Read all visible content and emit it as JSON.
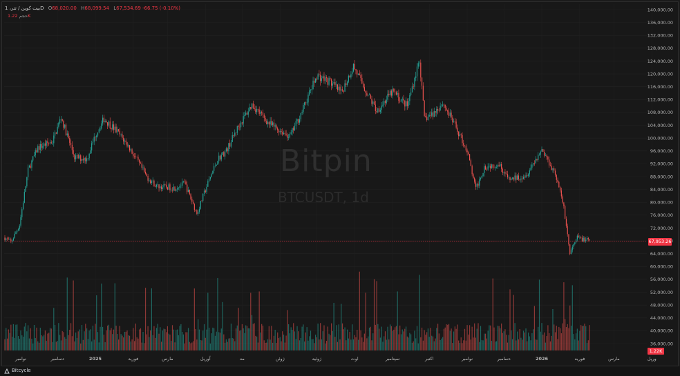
{
  "legend": {
    "symbol": "بیت کوین / تتر، 1D",
    "open_label": "O",
    "open": "68,020.00",
    "high_label": "H",
    "high": "68,099.54",
    "low_label": "L",
    "low": "67,534.69",
    "change": "-66.75 (-0.10%)",
    "volume_label": "حجم",
    "volume": "1.22K"
  },
  "watermark": {
    "brand": "Bitpin",
    "pair": "BTCUSDT, 1d"
  },
  "price_tag": "67,953.26",
  "volume_tag": "1.22K",
  "footer": {
    "brand": "Bitcycle"
  },
  "colors": {
    "up": "#26a69a",
    "down": "#ef5350",
    "price_line": "#f23645",
    "background": "#181818"
  },
  "chart_data": {
    "type": "candlestick",
    "symbol": "BTCUSDT",
    "interval": "1d",
    "ylim": [
      34000,
      141000
    ],
    "y_ticks": [
      "140,000.00",
      "136,000.00",
      "132,000.00",
      "128,000.00",
      "124,000.00",
      "120,000.00",
      "116,000.00",
      "112,000.00",
      "108,000.00",
      "104,000.00",
      "100,000.00",
      "96,000.00",
      "92,000.00",
      "88,000.00",
      "84,000.00",
      "80,000.00",
      "76,000.00",
      "72,000.00",
      "68,000.00",
      "64,000.00",
      "60,000.00",
      "56,000.00",
      "52,000.00",
      "48,000.00",
      "44,000.00",
      "40,000.00",
      "36,000.00"
    ],
    "x_ticks": [
      "نوامبر",
      "دسامبر",
      "2025",
      "فوریه",
      "مارس",
      "آوریل",
      "مه",
      "ژوئن",
      "ژوئیه",
      "اوت",
      "سپتامبر",
      "اکتبر",
      "نوامبر",
      "دسامبر",
      "2026",
      "فوریه",
      "مارس",
      "ورپل"
    ],
    "x_tick_years": [
      "2025",
      "2026"
    ],
    "last_price": 67953.26,
    "price_path": [
      [
        "2024-11-01",
        69000
      ],
      [
        "2024-11-06",
        67500
      ],
      [
        "2024-11-13",
        73000
      ],
      [
        "2024-11-20",
        90000
      ],
      [
        "2024-11-28",
        97000
      ],
      [
        "2024-12-10",
        99000
      ],
      [
        "2024-12-17",
        106500
      ],
      [
        "2024-12-28",
        94000
      ],
      [
        "2025-01-07",
        93500
      ],
      [
        "2025-01-14",
        101000
      ],
      [
        "2025-01-21",
        106000
      ],
      [
        "2025-02-01",
        102000
      ],
      [
        "2025-02-10",
        97500
      ],
      [
        "2025-02-25",
        88000
      ],
      [
        "2025-03-05",
        85000
      ],
      [
        "2025-03-20",
        84500
      ],
      [
        "2025-03-28",
        86000
      ],
      [
        "2025-04-07",
        76500
      ],
      [
        "2025-04-15",
        85000
      ],
      [
        "2025-04-24",
        93500
      ],
      [
        "2025-05-01",
        96000
      ],
      [
        "2025-05-10",
        103000
      ],
      [
        "2025-05-22",
        110500
      ],
      [
        "2025-06-05",
        104500
      ],
      [
        "2025-06-22",
        100500
      ],
      [
        "2025-07-01",
        107500
      ],
      [
        "2025-07-14",
        119500
      ],
      [
        "2025-07-25",
        117500
      ],
      [
        "2025-08-03",
        114000
      ],
      [
        "2025-08-13",
        122500
      ],
      [
        "2025-08-22",
        115500
      ],
      [
        "2025-09-01",
        108500
      ],
      [
        "2025-09-14",
        114500
      ],
      [
        "2025-09-26",
        110000
      ],
      [
        "2025-10-06",
        124500
      ],
      [
        "2025-10-10",
        106000
      ],
      [
        "2025-10-17",
        107500
      ],
      [
        "2025-10-25",
        111000
      ],
      [
        "2025-11-04",
        104000
      ],
      [
        "2025-11-14",
        96000
      ],
      [
        "2025-11-21",
        84000
      ],
      [
        "2025-11-28",
        91000
      ],
      [
        "2025-12-10",
        92000
      ],
      [
        "2025-12-18",
        87000
      ],
      [
        "2026-01-01",
        88500
      ],
      [
        "2026-01-14",
        96500
      ],
      [
        "2026-01-25",
        89000
      ],
      [
        "2026-02-01",
        78500
      ],
      [
        "2026-02-06",
        64000
      ],
      [
        "2026-02-12",
        69000
      ],
      [
        "2026-02-22",
        67953
      ]
    ]
  }
}
